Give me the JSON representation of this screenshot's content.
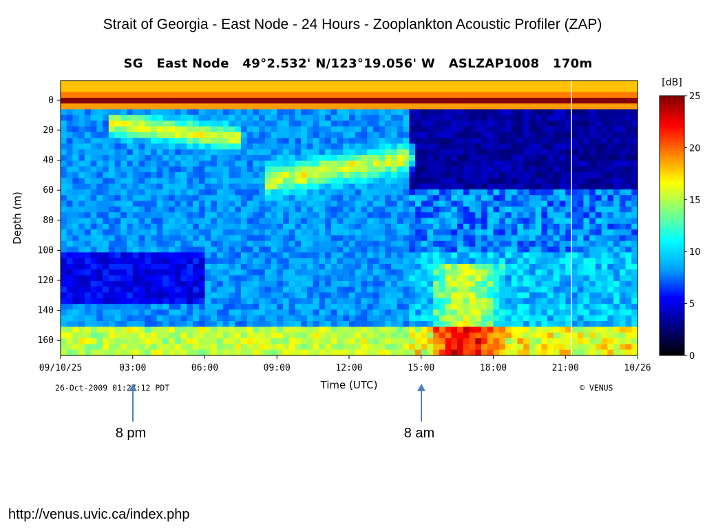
{
  "slide": {
    "title": "Strait of Georgia - East Node - 24 Hours - Zooplankton Acoustic Profiler (ZAP)",
    "url": "http://venus.uvic.ca/index.php"
  },
  "plot": {
    "header": "SG   East Node   49°2.532' N/123°19.056' W   ASLZAP1008   170m",
    "timestamp": "26-Oct-2009 01:27:12 PDT",
    "credit": "© VENUS"
  },
  "annotations": [
    {
      "label": "8 pm",
      "time_utc": 3.0
    },
    {
      "label": "8 am",
      "time_utc": 15.0
    }
  ],
  "chart_data": {
    "type": "heatmap",
    "title": "SG   East Node   49°2.532' N/123°19.056' W   ASLZAP1008   170m",
    "xlabel": "Time (UTC)",
    "ylabel": "Depth (m)",
    "xlim": [
      0,
      24
    ],
    "ylim": [
      -13,
      170
    ],
    "y_inverted": true,
    "x_ticks": [
      {
        "value": 0,
        "label": "09/10/25"
      },
      {
        "value": 3,
        "label": "03:00"
      },
      {
        "value": 6,
        "label": "06:00"
      },
      {
        "value": 9,
        "label": "09:00"
      },
      {
        "value": 12,
        "label": "12:00"
      },
      {
        "value": 15,
        "label": "15:00"
      },
      {
        "value": 18,
        "label": "18:00"
      },
      {
        "value": 21,
        "label": "21:00"
      },
      {
        "value": 24,
        "label": "10/26"
      }
    ],
    "y_ticks": [
      0,
      20,
      40,
      60,
      80,
      100,
      120,
      140,
      160
    ],
    "colorbar": {
      "label": "[dB]",
      "min": 0,
      "max": 25,
      "ticks": [
        0,
        5,
        10,
        15,
        20,
        25
      ],
      "colormap": "jet",
      "colors": [
        "#000000",
        "#000080",
        "#0000ff",
        "#00a0ff",
        "#00ffff",
        "#80ff80",
        "#ffff00",
        "#ff8000",
        "#ff0000",
        "#800000"
      ]
    },
    "grid": false,
    "features": [
      {
        "name": "surface band",
        "depth_m": 0,
        "time_range": [
          0,
          24
        ],
        "level_db": 24
      },
      {
        "name": "evening scattering layer",
        "depth_range_m": [
          10,
          30
        ],
        "time_range": [
          2.2,
          7.5
        ],
        "level_db": 19
      },
      {
        "name": "night scattering layer",
        "depth_range_m": [
          30,
          55
        ],
        "time_range": [
          8.5,
          14.5
        ],
        "level_db": 20
      },
      {
        "name": "near-bottom aggregation",
        "depth_range_m": [
          120,
          165
        ],
        "time_range": [
          16,
          18
        ],
        "level_db": 16
      },
      {
        "name": "near-bottom layer",
        "depth_range_m": [
          150,
          170
        ],
        "time_range": [
          0,
          24
        ],
        "level_db": 15
      }
    ]
  }
}
